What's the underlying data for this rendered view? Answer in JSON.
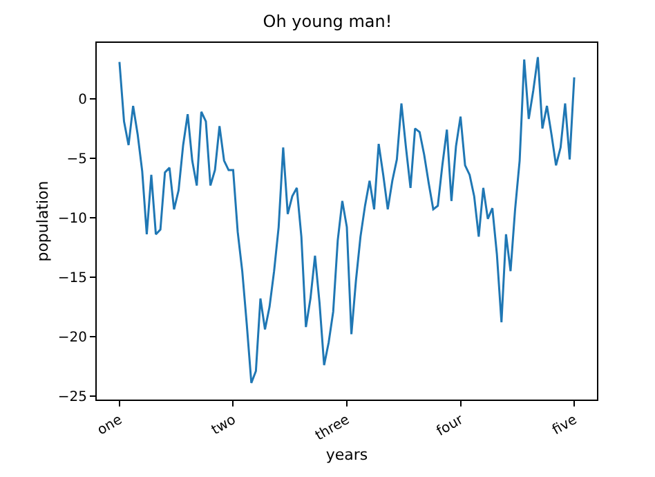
{
  "chart_data": {
    "type": "line",
    "title": "Oh young man!",
    "xlabel": "years",
    "ylabel": "population",
    "categories": [
      "one",
      null,
      null,
      null,
      null,
      null,
      null,
      null,
      null,
      null,
      null,
      null,
      null,
      null,
      null,
      null,
      null,
      null,
      null,
      null,
      null,
      null,
      null,
      null,
      null,
      "two",
      null,
      null,
      null,
      null,
      null,
      null,
      null,
      null,
      null,
      null,
      null,
      null,
      null,
      null,
      null,
      null,
      null,
      null,
      null,
      null,
      null,
      null,
      null,
      null,
      "three",
      null,
      null,
      null,
      null,
      null,
      null,
      null,
      null,
      null,
      null,
      null,
      null,
      null,
      null,
      null,
      null,
      null,
      null,
      null,
      null,
      null,
      null,
      null,
      null,
      "four",
      null,
      null,
      null,
      null,
      null,
      null,
      null,
      null,
      null,
      null,
      null,
      null,
      null,
      null,
      null,
      null,
      null,
      null,
      null,
      null,
      null,
      null,
      null,
      null,
      "five"
    ],
    "series": [
      {
        "color": "#1f77b4",
        "values": [
          3.1,
          -1.9,
          -3.9,
          -0.6,
          -3.0,
          -6.1,
          -11.4,
          -6.4,
          -11.4,
          -11.0,
          -6.2,
          -5.8,
          -9.3,
          -7.7,
          -3.9,
          -1.3,
          -5.2,
          -7.3,
          -1.1,
          -1.9,
          -7.3,
          -6.0,
          -2.3,
          -5.2,
          -6.0,
          -6.0,
          -11.2,
          -14.5,
          -19.0,
          -23.9,
          -22.9,
          -16.8,
          -19.4,
          -17.5,
          -14.5,
          -10.8,
          -4.1,
          -9.7,
          -8.2,
          -7.5,
          -11.6,
          -19.2,
          -16.8,
          -13.2,
          -17.2,
          -22.4,
          -20.5,
          -17.9,
          -11.9,
          -8.6,
          -10.8,
          -19.8,
          -15.3,
          -11.6,
          -9.0,
          -6.9,
          -9.3,
          -3.8,
          -6.4,
          -9.3,
          -6.9,
          -5.1,
          -0.4,
          -4.1,
          -7.5,
          -2.5,
          -2.8,
          -4.7,
          -7.1,
          -9.3,
          -9.0,
          -5.6,
          -2.6,
          -8.6,
          -4.0,
          -1.5,
          -5.6,
          -6.4,
          -8.2,
          -11.6,
          -7.5,
          -10.1,
          -9.2,
          -13.1,
          -18.8,
          -11.4,
          -14.5,
          -9.3,
          -5.2,
          3.3,
          -1.7,
          0.7,
          3.5,
          -2.5,
          -0.6,
          -3.0,
          -5.6,
          -4.1,
          -0.4,
          -5.1,
          1.8
        ]
      }
    ],
    "ylim": [
      -25.3,
      4.7
    ],
    "yticks": [
      {
        "value": 0,
        "label": "0"
      },
      {
        "value": -5,
        "label": "−5"
      },
      {
        "value": -10,
        "label": "−10"
      },
      {
        "value": -15,
        "label": "−15"
      },
      {
        "value": -20,
        "label": "−20"
      },
      {
        "value": -25,
        "label": "−25"
      }
    ],
    "marker": "none",
    "line_style": "solid"
  }
}
